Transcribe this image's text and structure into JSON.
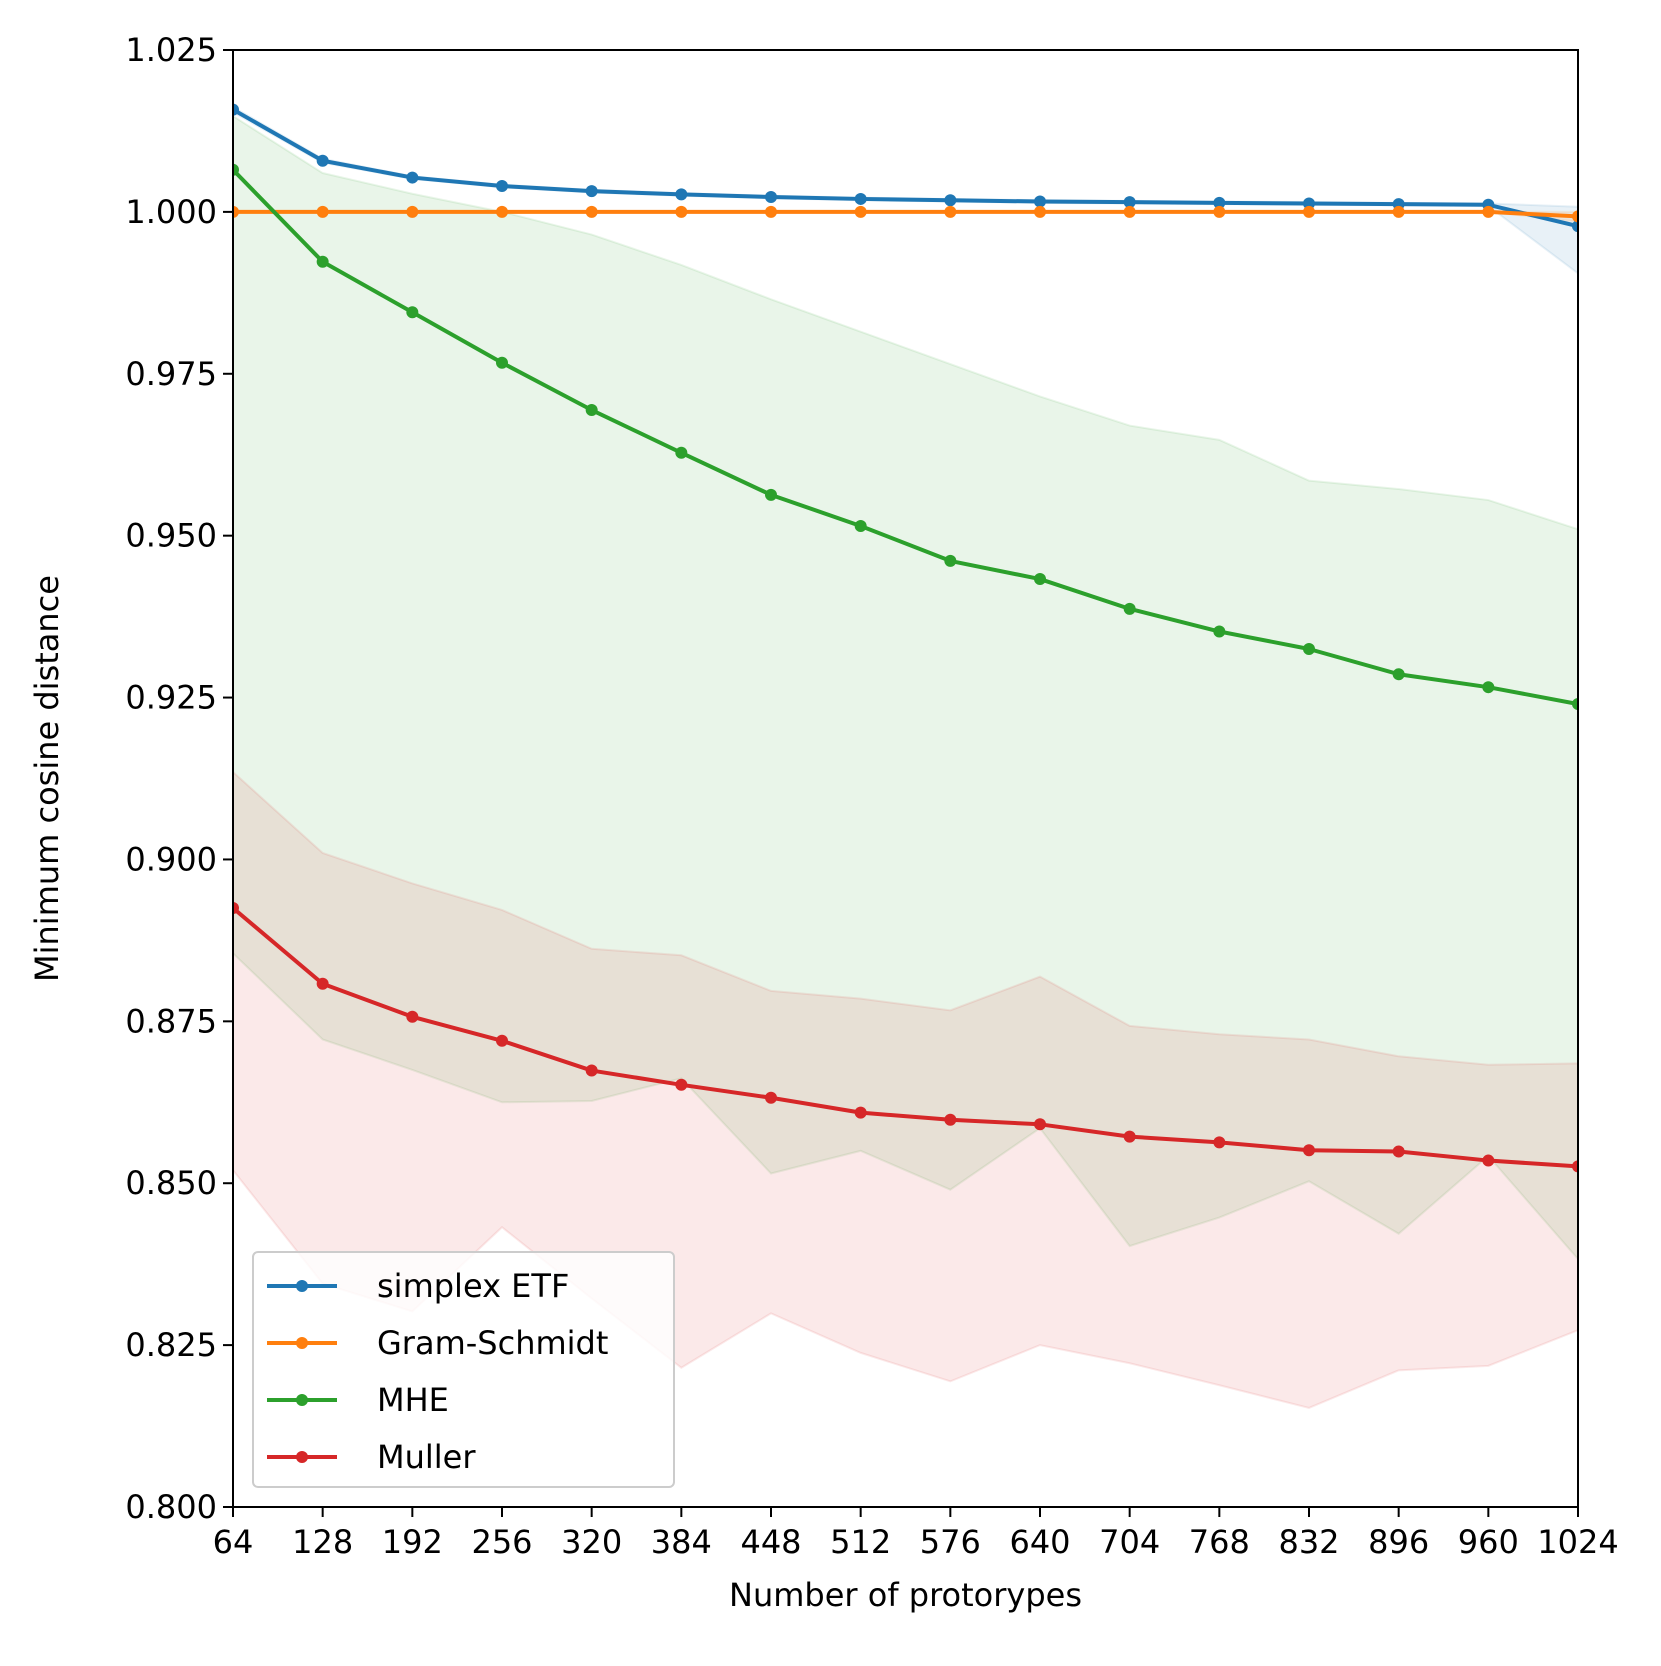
{
  "chart_data": {
    "type": "line",
    "title": "",
    "xlabel": "Number of protorypes",
    "ylabel": "Minimum cosine distance",
    "x": [
      64,
      128,
      192,
      256,
      320,
      384,
      448,
      512,
      576,
      640,
      704,
      768,
      832,
      896,
      960,
      1024
    ],
    "xticks": [
      "64",
      "128",
      "192",
      "256",
      "320",
      "384",
      "448",
      "512",
      "576",
      "640",
      "704",
      "768",
      "832",
      "896",
      "960",
      "1024"
    ],
    "xlim": [
      64,
      1024
    ],
    "ylim": [
      0.8,
      1.025
    ],
    "yticks": [
      "0.800",
      "0.825",
      "0.850",
      "0.875",
      "0.900",
      "0.925",
      "0.950",
      "0.975",
      "1.000",
      "1.025"
    ],
    "ytick_values": [
      0.8,
      0.825,
      0.85,
      0.875,
      0.9,
      0.925,
      0.95,
      0.975,
      1.0,
      1.025
    ],
    "grid": false,
    "legend_position": "lower-left",
    "series": [
      {
        "name": "simplex ETF",
        "color": "#1f77b4",
        "values": [
          1.0158,
          1.0079,
          1.0053,
          1.004,
          1.0032,
          1.0027,
          1.0023,
          1.002,
          1.0018,
          1.0016,
          1.0015,
          1.0014,
          1.0013,
          1.0012,
          1.0011,
          0.9978
        ],
        "band_upper": [
          1.0162,
          1.0082,
          1.0055,
          1.0042,
          1.0034,
          1.0029,
          1.0025,
          1.0022,
          1.002,
          1.0018,
          1.0017,
          1.0016,
          1.0015,
          1.0014,
          1.0013,
          1.0008
        ],
        "band_lower": [
          1.0154,
          1.0076,
          1.0051,
          1.0038,
          1.003,
          1.0025,
          1.0021,
          1.0018,
          1.0016,
          1.0014,
          1.0013,
          1.0012,
          1.0011,
          1.001,
          1.0009,
          0.9905
        ]
      },
      {
        "name": "Gram-Schmidt",
        "color": "#ff7f0e",
        "values": [
          1.0,
          1.0,
          1.0,
          1.0,
          1.0,
          1.0,
          1.0,
          1.0,
          1.0,
          1.0,
          1.0,
          1.0,
          1.0,
          1.0,
          1.0,
          0.9993
        ],
        "band_upper": [
          1.0,
          1.0,
          1.0,
          1.0,
          1.0,
          1.0,
          1.0,
          1.0,
          1.0,
          1.0,
          1.0,
          1.0,
          1.0,
          1.0,
          1.0,
          1.0
        ],
        "band_lower": [
          1.0,
          1.0,
          1.0,
          1.0,
          1.0,
          1.0,
          1.0,
          1.0,
          1.0,
          1.0,
          1.0,
          1.0,
          1.0,
          1.0,
          1.0,
          0.9985
        ]
      },
      {
        "name": "MHE",
        "color": "#2ca02c",
        "values": [
          1.0065,
          0.9923,
          0.9845,
          0.9767,
          0.9694,
          0.9628,
          0.9563,
          0.9515,
          0.9461,
          0.9433,
          0.9387,
          0.9352,
          0.9325,
          0.9286,
          0.9266,
          0.924
        ],
        "band_upper": [
          1.0148,
          1.006,
          1.0028,
          1.0,
          0.9965,
          0.9918,
          0.9865,
          0.9815,
          0.9765,
          0.9715,
          0.967,
          0.9648,
          0.9585,
          0.9572,
          0.9555,
          0.951
        ],
        "band_lower": [
          0.8855,
          0.8722,
          0.8675,
          0.8625,
          0.8627,
          0.8662,
          0.8515,
          0.855,
          0.849,
          0.8585,
          0.8403,
          0.8447,
          0.8503,
          0.8422,
          0.8542,
          0.8383
        ]
      },
      {
        "name": "Muller",
        "color": "#d62728",
        "values": [
          0.8925,
          0.8808,
          0.8757,
          0.872,
          0.8674,
          0.8652,
          0.8632,
          0.8609,
          0.8598,
          0.8591,
          0.8572,
          0.8563,
          0.8551,
          0.8549,
          0.8535,
          0.8526
        ],
        "band_upper": [
          0.9135,
          0.901,
          0.8963,
          0.8922,
          0.8862,
          0.8852,
          0.8797,
          0.8785,
          0.8767,
          0.8819,
          0.8743,
          0.873,
          0.8722,
          0.8696,
          0.8683,
          0.8685
        ],
        "band_lower": [
          0.852,
          0.8345,
          0.8302,
          0.8432,
          0.8322,
          0.8215,
          0.8299,
          0.8238,
          0.8194,
          0.825,
          0.8222,
          0.8188,
          0.8153,
          0.8211,
          0.8218,
          0.8273
        ]
      }
    ]
  }
}
